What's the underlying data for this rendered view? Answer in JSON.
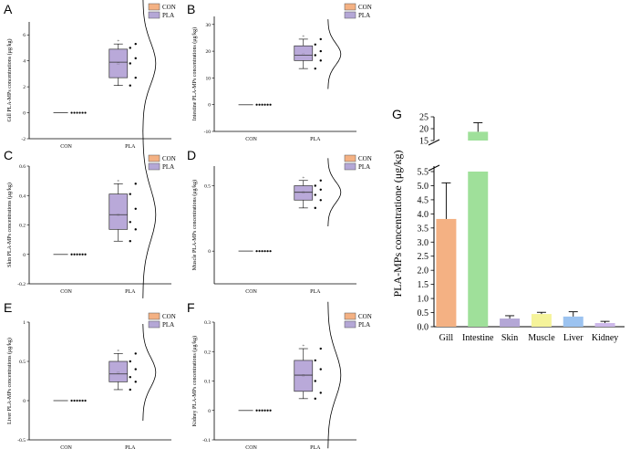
{
  "colors": {
    "con": "#f4b183",
    "pla": "#b4a7d6",
    "box_fill": "#b9a9d9",
    "gill": "#f4b183",
    "intestine": "#9fe09a",
    "skin": "#b4a7d6",
    "muscle": "#f5f39a",
    "liver": "#9cc3f0",
    "kidney": "#cdb8ea"
  },
  "chart_data": [
    {
      "type": "box",
      "panel": "A",
      "ylabel": "Gill PLA-MPs concentrations (μg/kg)",
      "ylim": [
        -2,
        7
      ],
      "yticks": [
        -2,
        0,
        2,
        4,
        6
      ],
      "categories": [
        "CON",
        "PLA"
      ],
      "legend": [
        "CON",
        "PLA"
      ],
      "con": {
        "value": 0,
        "points": [
          0,
          0,
          0,
          0,
          0,
          0
        ]
      },
      "pla": {
        "min": 2.1,
        "q1": 2.7,
        "median": 3.9,
        "q3": 4.9,
        "max": 5.3,
        "mean": 3.8,
        "points": [
          2.1,
          2.7,
          3.8,
          4.2,
          5.0,
          5.3
        ]
      }
    },
    {
      "type": "box",
      "panel": "B",
      "ylabel": "Intestine PLA-MPs concentrations (μg/kg)",
      "ylim": [
        -10,
        33
      ],
      "yticks": [
        -10,
        0,
        10,
        20,
        30
      ],
      "categories": [
        "CON",
        "PLA"
      ],
      "legend": [
        "CON",
        "PLA"
      ],
      "con": {
        "value": 0,
        "points": [
          0,
          0,
          0,
          0,
          0,
          0
        ]
      },
      "pla": {
        "min": 13.5,
        "q1": 16.5,
        "median": 18.5,
        "q3": 22.0,
        "max": 24.5,
        "mean": 18.9,
        "points": [
          13.5,
          16.5,
          18.5,
          20.0,
          22.5,
          24.5
        ]
      }
    },
    {
      "type": "box",
      "panel": "C",
      "ylabel": "Skin PLA-MPs concentrations (μg/kg)",
      "ylim": [
        -0.2,
        0.6
      ],
      "yticks": [
        -0.2,
        0.0,
        0.2,
        0.4,
        0.6
      ],
      "categories": [
        "CON",
        "PLA"
      ],
      "legend": [
        "CON",
        "PLA"
      ],
      "con": {
        "value": 0,
        "points": [
          0,
          0,
          0,
          0,
          0,
          0
        ]
      },
      "pla": {
        "min": 0.09,
        "q1": 0.17,
        "median": 0.27,
        "q3": 0.41,
        "max": 0.48,
        "mean": 0.27,
        "points": [
          0.09,
          0.17,
          0.22,
          0.31,
          0.41,
          0.48
        ]
      }
    },
    {
      "type": "box",
      "panel": "D",
      "ylabel": "Muscle PLA-MPs concentrations (μg/kg)",
      "ylim": [
        -0.25,
        0.65
      ],
      "yticks": [
        0.0,
        0.5
      ],
      "categories": [
        "CON",
        "PLA"
      ],
      "legend": [
        "CON",
        "PLA"
      ],
      "con": {
        "value": 0,
        "points": [
          0,
          0,
          0,
          0,
          0,
          0
        ]
      },
      "pla": {
        "min": 0.33,
        "q1": 0.39,
        "median": 0.45,
        "q3": 0.5,
        "max": 0.54,
        "mean": 0.45,
        "points": [
          0.33,
          0.39,
          0.43,
          0.47,
          0.5,
          0.54
        ]
      }
    },
    {
      "type": "box",
      "panel": "E",
      "ylabel": "Liver PLA-MPs concentrations (μg/kg)",
      "ylim": [
        -0.5,
        1.0
      ],
      "yticks": [
        -0.5,
        0.0,
        0.5,
        1.0
      ],
      "categories": [
        "CON",
        "PLA"
      ],
      "legend": [
        "CON",
        "PLA"
      ],
      "con": {
        "value": 0,
        "points": [
          0,
          0,
          0,
          0,
          0,
          0
        ]
      },
      "pla": {
        "min": 0.14,
        "q1": 0.24,
        "median": 0.34,
        "q3": 0.5,
        "max": 0.6,
        "mean": 0.36,
        "points": [
          0.14,
          0.24,
          0.3,
          0.4,
          0.5,
          0.6
        ]
      }
    },
    {
      "type": "box",
      "panel": "F",
      "ylabel": "Kidney PLA-MPs concentrations (μg/kg)",
      "ylim": [
        -0.1,
        0.3
      ],
      "yticks": [
        -0.1,
        0.0,
        0.1,
        0.2,
        0.3
      ],
      "categories": [
        "CON",
        "PLA"
      ],
      "legend": [
        "CON",
        "PLA"
      ],
      "con": {
        "value": 0,
        "points": [
          0,
          0,
          0,
          0,
          0,
          0
        ]
      },
      "pla": {
        "min": 0.04,
        "q1": 0.065,
        "median": 0.12,
        "q3": 0.17,
        "max": 0.21,
        "mean": 0.12,
        "points": [
          0.04,
          0.06,
          0.1,
          0.14,
          0.17,
          0.21
        ]
      }
    },
    {
      "type": "bar",
      "panel": "G",
      "ylabel": "PLA-MPs concentratione (μg/kg)",
      "categories": [
        "Gill",
        "Intestine",
        "Skin",
        "Muscle",
        "Liver",
        "Kidney"
      ],
      "values": [
        3.82,
        18.7,
        0.29,
        0.45,
        0.36,
        0.13
      ],
      "errors": [
        1.28,
        3.8,
        0.1,
        0.06,
        0.17,
        0.06
      ],
      "axis_break": {
        "lower": [
          0,
          5.5
        ],
        "upper": [
          15,
          25
        ]
      },
      "yticks_lower": [
        0.0,
        0.5,
        1.0,
        1.5,
        2.0,
        2.5,
        3.0,
        3.5,
        4.0,
        4.5,
        5.0,
        5.5
      ],
      "yticks_upper": [
        15,
        20,
        25
      ],
      "ytick_labels_lower": [
        "0.0",
        "0.5",
        "1.0",
        "1.5",
        "2.0",
        "2.5",
        "3.0",
        "3.5",
        "4.0",
        "4.5",
        "5.0",
        "5.5"
      ],
      "ytick_labels_upper": [
        "15",
        "20",
        "25"
      ]
    }
  ]
}
